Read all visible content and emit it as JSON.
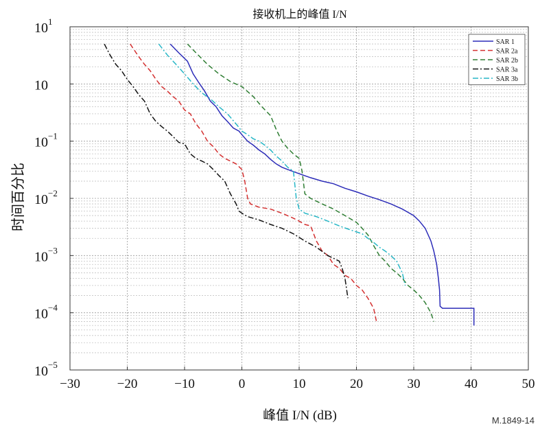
{
  "chart_data": {
    "type": "line",
    "title": "接收机上的峰值 I/N",
    "xlabel": "峰值 I/N (dB)",
    "ylabel": "时间百分比",
    "xlim": [
      -30,
      50
    ],
    "ylim": [
      1e-05,
      10
    ],
    "yscale": "log",
    "xticks": [
      "−30",
      "−20",
      "−10",
      "0",
      "10",
      "20",
      "30",
      "40",
      "50"
    ],
    "yticks": [
      {
        "base": "10",
        "exp": "1"
      },
      {
        "base": "10",
        "exp": ""
      },
      {
        "base": "10",
        "exp": "−1"
      },
      {
        "base": "10",
        "exp": "−2"
      },
      {
        "base": "10",
        "exp": "−3"
      },
      {
        "base": "10",
        "exp": "−4"
      },
      {
        "base": "10",
        "exp": "−5"
      }
    ],
    "grid": true,
    "legend_position": "top-right",
    "series": [
      {
        "name": "SAR 1",
        "color": "#2b2bb8",
        "dash": "solid",
        "x": [
          -12.5,
          -11,
          -9.5,
          -8.5,
          -7.5,
          -6.5,
          -5.5,
          -4.5,
          -3.5,
          -2.5,
          -1.5,
          -0.5,
          0,
          1,
          2,
          3,
          4,
          5,
          6,
          7,
          8,
          10,
          12,
          14,
          16,
          18,
          20,
          22,
          24,
          26,
          28,
          30,
          31,
          32,
          33,
          33.5,
          34,
          34.3,
          34.5,
          34.6,
          35,
          40.5,
          40.5
        ],
        "y": [
          5,
          3.5,
          2.5,
          1.5,
          1.05,
          0.75,
          0.5,
          0.4,
          0.28,
          0.22,
          0.17,
          0.15,
          0.13,
          0.1,
          0.085,
          0.07,
          0.06,
          0.048,
          0.04,
          0.035,
          0.032,
          0.027,
          0.023,
          0.02,
          0.018,
          0.015,
          0.013,
          0.011,
          0.0095,
          0.008,
          0.0065,
          0.005,
          0.004,
          0.003,
          0.0018,
          0.0012,
          0.0007,
          0.0004,
          0.00025,
          0.00013,
          0.00012,
          0.00012,
          6e-05
        ]
      },
      {
        "name": "SAR 2a",
        "color": "#d32f2f",
        "dash": "dashed",
        "x": [
          -19.5,
          -18,
          -17,
          -16,
          -15,
          -14,
          -13,
          -12,
          -11,
          -10,
          -9,
          -8,
          -7,
          -6,
          -5,
          -4,
          -3,
          -2,
          -1,
          0,
          0.5,
          1,
          1.5,
          3,
          5,
          7,
          9,
          10,
          11,
          12,
          13,
          14,
          15,
          16,
          17,
          18,
          19,
          20,
          21,
          22,
          23,
          23.5
        ],
        "y": [
          5,
          3,
          2.2,
          1.7,
          1.2,
          0.9,
          0.75,
          0.6,
          0.5,
          0.35,
          0.3,
          0.2,
          0.15,
          0.1,
          0.08,
          0.06,
          0.05,
          0.045,
          0.04,
          0.032,
          0.02,
          0.01,
          0.008,
          0.007,
          0.0065,
          0.0055,
          0.0045,
          0.004,
          0.0035,
          0.0033,
          0.0018,
          0.0012,
          0.001,
          0.0007,
          0.0006,
          0.00045,
          0.0004,
          0.0003,
          0.00025,
          0.00018,
          0.00012,
          7e-05
        ]
      },
      {
        "name": "SAR 2b",
        "color": "#2e7d32",
        "dash": "dashed",
        "x": [
          -9.5,
          -8,
          -6,
          -4,
          -2,
          0,
          2,
          3.5,
          5,
          6,
          7,
          8,
          9,
          10,
          10.5,
          11,
          12,
          14,
          16,
          18,
          20,
          21,
          22,
          23,
          24,
          25,
          26,
          27,
          28,
          29,
          30,
          31,
          32,
          33,
          33.5
        ],
        "y": [
          5,
          3.5,
          2.2,
          1.5,
          1.1,
          0.9,
          0.6,
          0.4,
          0.28,
          0.16,
          0.1,
          0.075,
          0.06,
          0.05,
          0.03,
          0.012,
          0.01,
          0.008,
          0.0065,
          0.005,
          0.0038,
          0.003,
          0.0023,
          0.0015,
          0.001,
          0.0008,
          0.0006,
          0.0005,
          0.0004,
          0.0003,
          0.00025,
          0.0002,
          0.00015,
          0.0001,
          7e-05
        ]
      },
      {
        "name": "SAR 3a",
        "color": "#111111",
        "dash": "dashdot",
        "x": [
          -24,
          -23,
          -22,
          -21,
          -20,
          -19,
          -18,
          -17,
          -16,
          -15,
          -14,
          -13,
          -12,
          -11,
          -10,
          -9,
          -8,
          -7,
          -6,
          -5,
          -4,
          -3,
          -2,
          -1,
          -0.5,
          0,
          1,
          3,
          5,
          7,
          9,
          11,
          13,
          15,
          17,
          17.5,
          18,
          18.3,
          18.5
        ],
        "y": [
          5,
          3.2,
          2.2,
          1.7,
          1.2,
          0.9,
          0.65,
          0.5,
          0.3,
          0.22,
          0.18,
          0.15,
          0.12,
          0.095,
          0.09,
          0.06,
          0.05,
          0.045,
          0.04,
          0.032,
          0.025,
          0.02,
          0.012,
          0.008,
          0.006,
          0.0055,
          0.0048,
          0.0042,
          0.0035,
          0.003,
          0.0024,
          0.0018,
          0.0014,
          0.001,
          0.0008,
          0.0006,
          0.0004,
          0.00025,
          0.00018
        ]
      },
      {
        "name": "SAR 3b",
        "color": "#26b6c6",
        "dash": "dashdot",
        "x": [
          -14.5,
          -13,
          -11.5,
          -10,
          -8.5,
          -7,
          -5.5,
          -4,
          -2.5,
          -1,
          0,
          1,
          2,
          3,
          4,
          5,
          6,
          7,
          8,
          9,
          9.5,
          10,
          11,
          13,
          15,
          17,
          19,
          21,
          22,
          23,
          24,
          25,
          26,
          27,
          28,
          28.5
        ],
        "y": [
          5,
          3.2,
          2.2,
          1.5,
          1.0,
          0.7,
          0.55,
          0.4,
          0.3,
          0.2,
          0.15,
          0.13,
          0.11,
          0.1,
          0.085,
          0.07,
          0.055,
          0.045,
          0.035,
          0.03,
          0.01,
          0.0065,
          0.0055,
          0.0048,
          0.004,
          0.0033,
          0.0028,
          0.0024,
          0.002,
          0.0017,
          0.0014,
          0.0012,
          0.001,
          0.0008,
          0.0005,
          0.0003
        ]
      }
    ]
  },
  "footer": {
    "ref": "M.1849-14"
  }
}
